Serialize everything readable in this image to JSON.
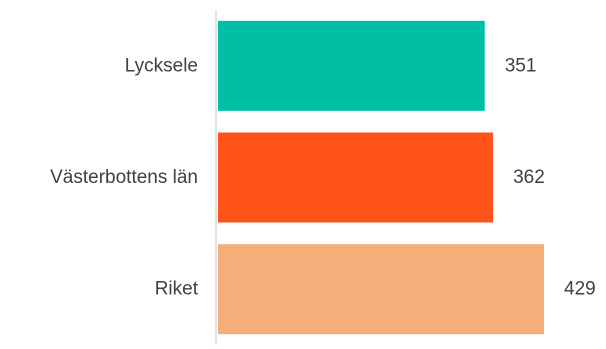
{
  "chart_data": {
    "type": "bar",
    "orientation": "horizontal",
    "categories": [
      "Lycksele",
      "Västerbottens län",
      "Riket"
    ],
    "values": [
      351,
      362,
      429
    ],
    "value_labels": [
      "351",
      "362",
      "429"
    ],
    "colors": [
      "#00BFA5",
      "#FF5319",
      "#F5AD7A"
    ],
    "axis_color": "#D9D9D9",
    "label_color": "#404040",
    "xlim": [
      0,
      470
    ],
    "grid": false,
    "legend": "none"
  }
}
